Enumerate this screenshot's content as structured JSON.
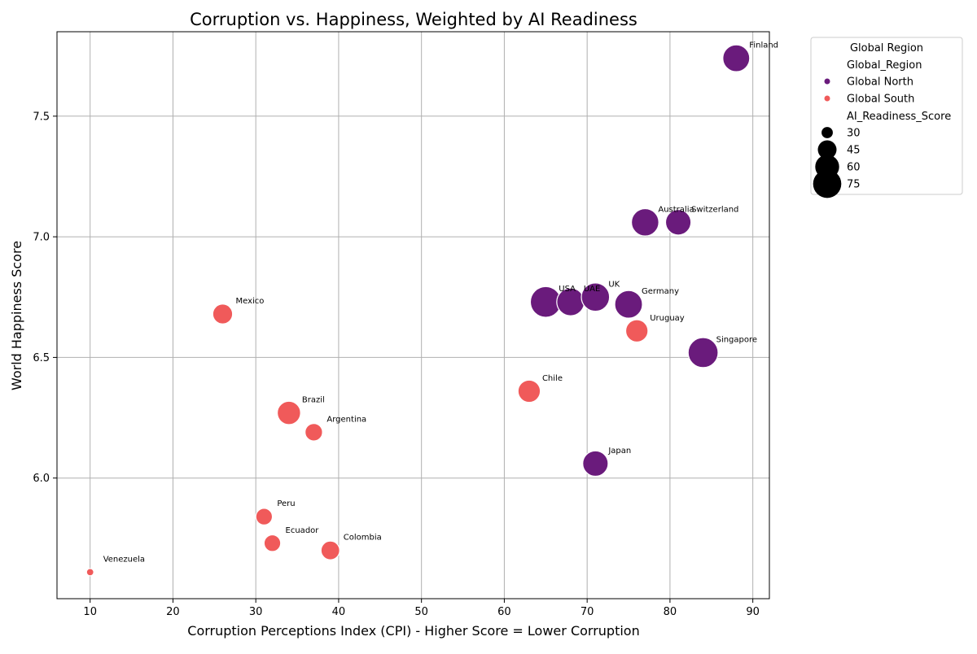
{
  "chart_data": {
    "type": "scatter",
    "title": "Corruption vs. Happiness, Weighted by AI Readiness",
    "xlabel": "Corruption Perceptions Index (CPI) - Higher Score = Lower Corruption",
    "ylabel": "World Happiness Score",
    "xlim": [
      6,
      92
    ],
    "ylim": [
      5.5,
      7.85
    ],
    "xticks": [
      "10",
      "20",
      "30",
      "40",
      "50",
      "60",
      "70",
      "80",
      "90"
    ],
    "yticks": [
      "6.0",
      "6.5",
      "7.0",
      "7.5"
    ],
    "grid": true,
    "legend": {
      "placement": "outside-right",
      "title": "Global Region",
      "hue_header": "Global_Region",
      "size_header": "AI_Readiness_Score",
      "hue_entries": [
        {
          "label": "Global North",
          "color": "#6a1b7c"
        },
        {
          "label": "Global South",
          "color": "#f05a5a"
        }
      ],
      "size_entries": [
        {
          "label": "30",
          "value": 30
        },
        {
          "label": "45",
          "value": 45
        },
        {
          "label": "60",
          "value": 60
        },
        {
          "label": "75",
          "value": 75
        }
      ]
    },
    "colors": {
      "Global North": "#6a1b7c",
      "Global South": "#f05a5a"
    },
    "points": [
      {
        "label": "Finland",
        "x": 88,
        "y": 7.74,
        "region": "Global North",
        "ai": 70
      },
      {
        "label": "Australia",
        "x": 77,
        "y": 7.06,
        "region": "Global North",
        "ai": 72
      },
      {
        "label": "Switzerland",
        "x": 81,
        "y": 7.06,
        "region": "Global North",
        "ai": 65
      },
      {
        "label": "USA",
        "x": 65,
        "y": 6.73,
        "region": "Global North",
        "ai": 85
      },
      {
        "label": "UAE",
        "x": 68,
        "y": 6.73,
        "region": "Global North",
        "ai": 73
      },
      {
        "label": "UK",
        "x": 71,
        "y": 6.75,
        "region": "Global North",
        "ai": 75
      },
      {
        "label": "Germany",
        "x": 75,
        "y": 6.72,
        "region": "Global North",
        "ai": 73
      },
      {
        "label": "Singapore",
        "x": 84,
        "y": 6.52,
        "region": "Global North",
        "ai": 82
      },
      {
        "label": "Japan",
        "x": 71,
        "y": 6.06,
        "region": "Global North",
        "ai": 65
      },
      {
        "label": "Mexico",
        "x": 26,
        "y": 6.68,
        "region": "Global South",
        "ai": 48
      },
      {
        "label": "Uruguay",
        "x": 76,
        "y": 6.61,
        "region": "Global South",
        "ai": 55
      },
      {
        "label": "Chile",
        "x": 63,
        "y": 6.36,
        "region": "Global South",
        "ai": 55
      },
      {
        "label": "Brazil",
        "x": 34,
        "y": 6.27,
        "region": "Global South",
        "ai": 58
      },
      {
        "label": "Argentina",
        "x": 37,
        "y": 6.19,
        "region": "Global South",
        "ai": 42
      },
      {
        "label": "Peru",
        "x": 31,
        "y": 5.84,
        "region": "Global South",
        "ai": 40
      },
      {
        "label": "Ecuador",
        "x": 32,
        "y": 5.73,
        "region": "Global South",
        "ai": 40
      },
      {
        "label": "Colombia",
        "x": 39,
        "y": 5.7,
        "region": "Global South",
        "ai": 45
      },
      {
        "label": "Venezuela",
        "x": 10,
        "y": 5.61,
        "region": "Global South",
        "ai": 25
      }
    ]
  }
}
